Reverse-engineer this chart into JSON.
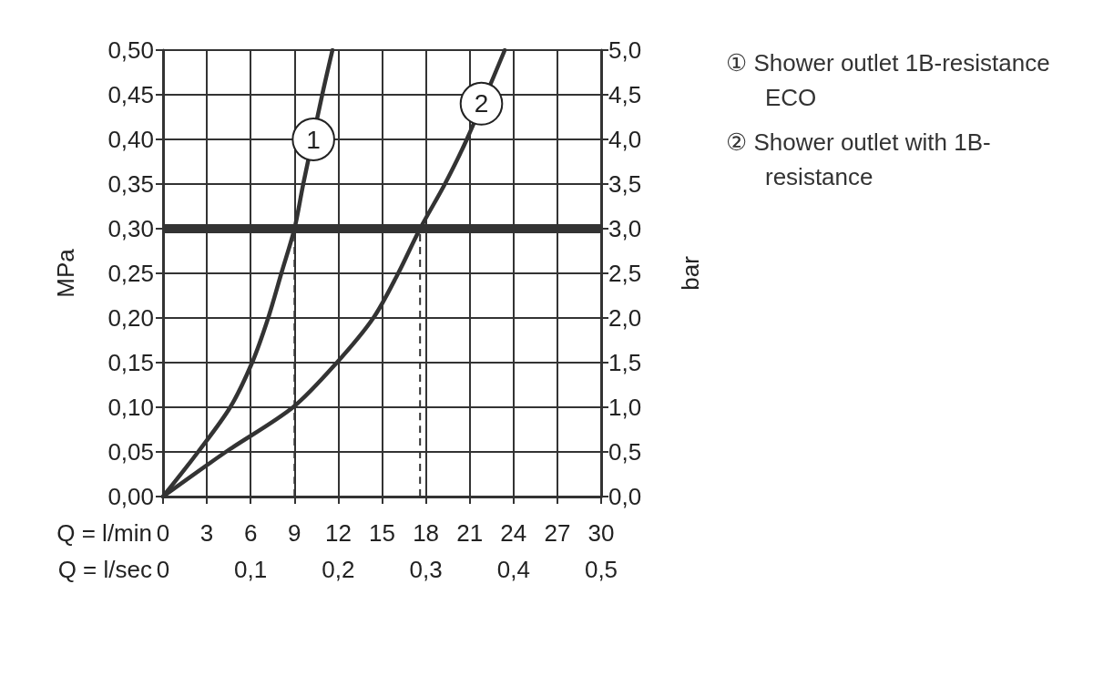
{
  "chart_data": {
    "type": "line",
    "xlabel": "Q = l/min",
    "x2label": "Q = l/sec",
    "ylabel": "MPa",
    "y2label": "bar",
    "xlim": [
      0,
      30
    ],
    "xticks": [
      0,
      3,
      6,
      9,
      12,
      15,
      18,
      21,
      24,
      27,
      30
    ],
    "x2lim": [
      0,
      0.5
    ],
    "x2ticks": [
      {
        "value": 0,
        "label": "0"
      },
      {
        "value": 0.1,
        "label": "0,1"
      },
      {
        "value": 0.2,
        "label": "0,2"
      },
      {
        "value": 0.3,
        "label": "0,3"
      },
      {
        "value": 0.4,
        "label": "0,4"
      },
      {
        "value": 0.5,
        "label": "0,5"
      }
    ],
    "ylim": [
      0,
      0.5
    ],
    "yticks": [
      {
        "value": 0,
        "label": "0,00"
      },
      {
        "value": 0.05,
        "label": "0,05"
      },
      {
        "value": 0.1,
        "label": "0,10"
      },
      {
        "value": 0.15,
        "label": "0,15"
      },
      {
        "value": 0.2,
        "label": "0,20"
      },
      {
        "value": 0.25,
        "label": "0,25"
      },
      {
        "value": 0.3,
        "label": "0,30"
      },
      {
        "value": 0.35,
        "label": "0,35"
      },
      {
        "value": 0.4,
        "label": "0,40"
      },
      {
        "value": 0.45,
        "label": "0,45"
      },
      {
        "value": 0.5,
        "label": "0,50"
      }
    ],
    "y2lim": [
      0,
      5
    ],
    "y2ticks": [
      {
        "value": 0,
        "label": "0,0"
      },
      {
        "value": 0.5,
        "label": "0,5"
      },
      {
        "value": 1,
        "label": "1,0"
      },
      {
        "value": 1.5,
        "label": "1,5"
      },
      {
        "value": 2,
        "label": "2,0"
      },
      {
        "value": 2.5,
        "label": "2,5"
      },
      {
        "value": 3,
        "label": "3,0"
      },
      {
        "value": 3.5,
        "label": "3,5"
      },
      {
        "value": 4,
        "label": "4,0"
      },
      {
        "value": 4.5,
        "label": "4,5"
      },
      {
        "value": 5,
        "label": "5,0"
      }
    ],
    "series": [
      {
        "name": "① Shower outlet 1B-resistance ECO",
        "color": "#333333",
        "x": [
          0,
          2.4,
          4.6,
          6.1,
          7.2,
          8.1,
          9,
          9.6,
          10.9,
          11.6
        ],
        "values": [
          0,
          0.05,
          0.1,
          0.15,
          0.2,
          0.25,
          0.3,
          0.35,
          0.45,
          0.5
        ]
      },
      {
        "name": "② Shower outlet with 1B-resistance",
        "color": "#333333",
        "x": [
          0,
          4.3,
          8.9,
          11.9,
          14.4,
          16.1,
          17.6,
          19.3,
          20.8,
          23.4
        ],
        "values": [
          0,
          0.05,
          0.1,
          0.15,
          0.2,
          0.25,
          0.3,
          0.35,
          0.4,
          0.5
        ]
      },
      {
        "color": "#333333",
        "line_style": "dashed",
        "x": [
          9,
          9
        ],
        "values": [
          0,
          0.3
        ]
      },
      {
        "color": "#333333",
        "line_style": "dashed",
        "x": [
          17.6,
          17.6
        ],
        "values": [
          0,
          0.3
        ]
      }
    ],
    "ref_lines": [
      {
        "axis": "y",
        "value": 0.3,
        "color": "#333333"
      }
    ],
    "annotations": [
      {
        "text": "1",
        "x": 10.3,
        "y": 0.4
      },
      {
        "text": "2",
        "x": 21.8,
        "y": 0.44
      }
    ],
    "grid": true,
    "legend": "top right",
    "marker": "none"
  }
}
